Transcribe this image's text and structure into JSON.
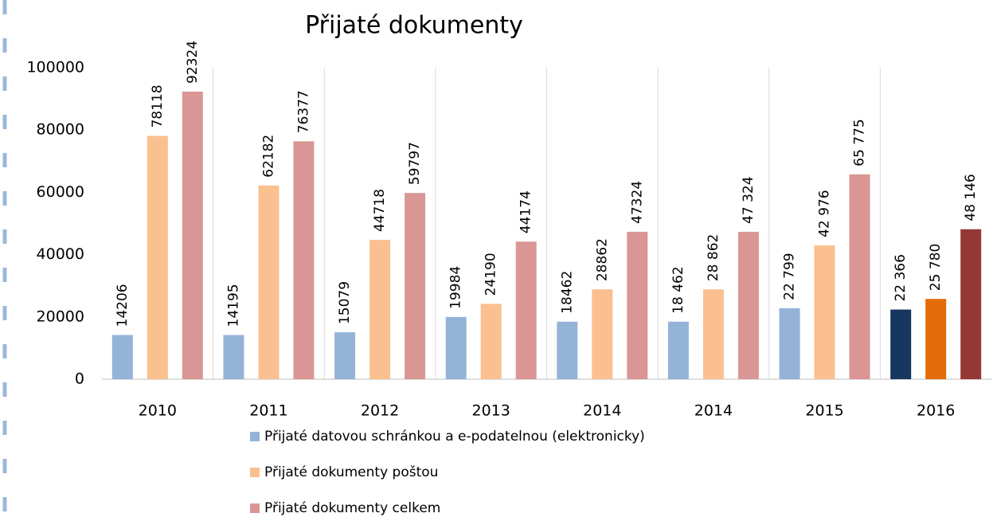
{
  "chart_data": {
    "type": "bar",
    "title": "Přijaté dokumenty",
    "categories": [
      "2010",
      "2011",
      "2012",
      "2013",
      "2014",
      "2014",
      "2015",
      "2016"
    ],
    "ylim": [
      0,
      100000
    ],
    "yticks": [
      0,
      20000,
      40000,
      60000,
      80000,
      100000
    ],
    "legend": "bottom",
    "series": [
      {
        "name": "Přijaté datovou schránkou a e-podatelnou (elektronicky)",
        "color": "#95b3d7",
        "colors": [
          "#95b3d7",
          "#95b3d7",
          "#95b3d7",
          "#95b3d7",
          "#95b3d7",
          "#95b3d7",
          "#95b3d7",
          "#17375e"
        ],
        "values": [
          14206,
          14195,
          15079,
          19984,
          18462,
          18462,
          22799,
          22366
        ],
        "value_labels": [
          "14206",
          "14195",
          "15079",
          "19984",
          "18462",
          "18 462",
          "22 799",
          "22 366"
        ]
      },
      {
        "name": "Přijaté dokumenty poštou",
        "color": "#fac090",
        "colors": [
          "#fac090",
          "#fac090",
          "#fac090",
          "#fac090",
          "#fac090",
          "#fac090",
          "#fac090",
          "#e36c09"
        ],
        "values": [
          78118,
          62182,
          44718,
          24190,
          28862,
          28862,
          42976,
          25780
        ],
        "value_labels": [
          "78118",
          "62182",
          "44718",
          "24190",
          "28862",
          "28 862",
          "42 976",
          "25 780"
        ]
      },
      {
        "name": "Přijaté dokumenty celkem",
        "color": "#d99694",
        "colors": [
          "#d99694",
          "#d99694",
          "#d99694",
          "#d99694",
          "#d99694",
          "#d99694",
          "#d99694",
          "#953735"
        ],
        "values": [
          92324,
          76377,
          59797,
          44174,
          47324,
          47324,
          65775,
          48146
        ],
        "value_labels": [
          "92324",
          "76377",
          "59797",
          "44174",
          "47324",
          "47 324",
          "65 775",
          "48 146"
        ]
      }
    ]
  }
}
